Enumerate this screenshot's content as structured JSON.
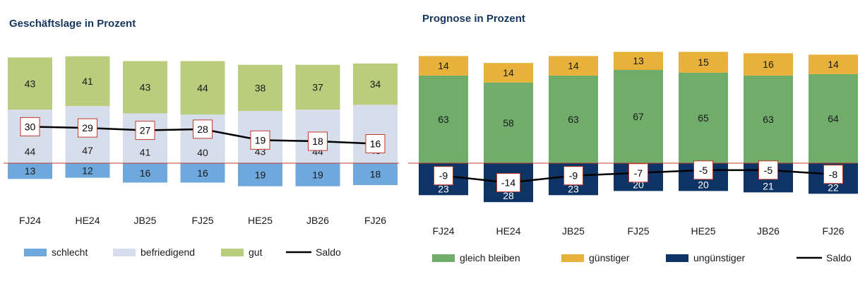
{
  "chart_data": [
    {
      "type": "bar",
      "stacked": true,
      "title": "Geschäftslage in Prozent",
      "categories": [
        "FJ24",
        "HE24",
        "JB25",
        "FJ25",
        "HE25",
        "JB26",
        "FJ26"
      ],
      "series": [
        {
          "name": "schlecht",
          "values": [
            13,
            12,
            16,
            16,
            19,
            19,
            18
          ],
          "color": "#6fa8dc",
          "direction": "negative"
        },
        {
          "name": "befriedigend",
          "values": [
            44,
            47,
            41,
            40,
            43,
            44,
            48
          ],
          "color": "#d7deeb",
          "direction": "positive"
        },
        {
          "name": "gut",
          "values": [
            43,
            41,
            43,
            44,
            38,
            37,
            34
          ],
          "color": "#b9cd7d",
          "direction": "positive"
        }
      ],
      "line": {
        "name": "Saldo",
        "values": [
          30,
          29,
          27,
          28,
          19,
          18,
          16
        ],
        "color": "#000000"
      },
      "grid": false,
      "legend_position": "bottom"
    },
    {
      "type": "bar",
      "stacked": true,
      "title": "Prognose in Prozent",
      "categories": [
        "FJ24",
        "HE24",
        "JB25",
        "FJ25",
        "HE25",
        "JB26",
        "FJ26"
      ],
      "series": [
        {
          "name": "gleich bleiben",
          "values": [
            63,
            58,
            63,
            67,
            65,
            63,
            64
          ],
          "color": "#70ad6b",
          "direction": "positive"
        },
        {
          "name": "günstiger",
          "values": [
            14,
            14,
            14,
            13,
            15,
            16,
            14
          ],
          "color": "#e8b23a",
          "direction": "positive"
        },
        {
          "name": "ungünstiger",
          "values": [
            23,
            28,
            23,
            20,
            20,
            21,
            22
          ],
          "color": "#0d3464",
          "direction": "negative"
        }
      ],
      "line": {
        "name": "Saldo",
        "values": [
          -9,
          -14,
          -9,
          -7,
          -5,
          -5,
          -8
        ],
        "color": "#000000"
      },
      "grid": false,
      "legend_position": "bottom"
    }
  ],
  "colors": {
    "title": "#17375e",
    "zero_line": "#c0392b",
    "label_box_border": "#c0392b"
  }
}
